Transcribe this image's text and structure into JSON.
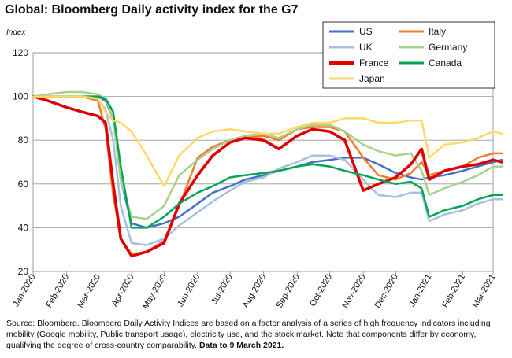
{
  "title": "Global: Bloomberg Daily activity index for the G7",
  "chart_data": {
    "type": "line",
    "ylabel": "Index",
    "ylim": [
      20,
      120
    ],
    "yticks": [
      20,
      40,
      60,
      80,
      100,
      120
    ],
    "grid": true,
    "legend_position": "top-right",
    "x_tick_labels": [
      "Jan-2020",
      "Feb-2020",
      "Mar-2020",
      "Apr-2020",
      "May-2020",
      "Jun-2020",
      "Jul-2020",
      "Aug-2020",
      "Sep-2020",
      "Oct-2020",
      "Nov-2020",
      "Dec-2020",
      "Jan-2021",
      "Feb-2021",
      "Mar-2021"
    ],
    "x": [
      "2020-01-01",
      "2020-01-15",
      "2020-02-01",
      "2020-02-15",
      "2020-03-01",
      "2020-03-08",
      "2020-03-15",
      "2020-03-22",
      "2020-04-01",
      "2020-04-15",
      "2020-05-01",
      "2020-05-15",
      "2020-06-01",
      "2020-06-15",
      "2020-07-01",
      "2020-07-15",
      "2020-08-01",
      "2020-08-15",
      "2020-09-01",
      "2020-09-15",
      "2020-10-01",
      "2020-10-15",
      "2020-11-01",
      "2020-11-15",
      "2020-12-01",
      "2020-12-15",
      "2020-12-25",
      "2021-01-01",
      "2021-01-15",
      "2021-02-01",
      "2021-02-15",
      "2021-03-01",
      "2021-03-09"
    ],
    "series": [
      {
        "name": "US",
        "color": "#4472c4",
        "width": 2.5,
        "values": [
          100,
          100,
          100,
          100,
          100,
          98,
          90,
          62,
          42,
          40,
          42,
          45,
          51,
          56,
          59,
          62,
          64,
          66,
          68,
          70,
          71,
          72,
          72,
          69,
          65,
          63,
          62,
          63,
          64,
          66,
          68,
          70,
          71
        ]
      },
      {
        "name": "Italy",
        "color": "#ed7d31",
        "width": 2.5,
        "values": [
          100,
          100,
          100,
          100,
          98,
          85,
          55,
          35,
          28,
          29,
          34,
          50,
          72,
          77,
          80,
          81,
          82,
          80,
          85,
          86,
          86,
          84,
          72,
          64,
          62,
          65,
          70,
          64,
          66,
          68,
          72,
          74,
          74
        ]
      },
      {
        "name": "UK",
        "color": "#a9bfe0",
        "width": 2.5,
        "values": [
          100,
          100,
          100,
          100,
          99,
          94,
          80,
          50,
          33,
          32,
          35,
          41,
          47,
          52,
          57,
          61,
          63,
          67,
          70,
          73,
          73,
          71,
          62,
          55,
          54,
          56,
          56,
          43,
          46,
          48,
          51,
          53,
          53
        ]
      },
      {
        "name": "Germany",
        "color": "#a9d18e",
        "width": 2.5,
        "values": [
          100,
          101,
          102,
          102,
          101,
          99,
          90,
          62,
          45,
          44,
          50,
          64,
          71,
          76,
          80,
          82,
          83,
          81,
          85,
          87,
          87,
          84,
          78,
          75,
          73,
          74,
          66,
          55,
          58,
          61,
          64,
          68,
          68
        ]
      },
      {
        "name": "France",
        "color": "#e00000",
        "width": 3.5,
        "values": [
          100,
          98,
          95,
          93,
          91,
          88,
          60,
          35,
          27,
          29,
          33,
          51,
          64,
          73,
          79,
          81,
          80,
          76,
          82,
          85,
          84,
          80,
          57,
          60,
          63,
          69,
          76,
          62,
          66,
          68,
          69,
          71,
          70
        ]
      },
      {
        "name": "Canada",
        "color": "#00a651",
        "width": 2.5,
        "values": [
          100,
          100,
          100,
          100,
          100,
          99,
          93,
          68,
          40,
          40,
          45,
          51,
          56,
          59,
          63,
          64,
          65,
          66,
          68,
          69,
          68,
          66,
          64,
          62,
          60,
          61,
          58,
          45,
          48,
          50,
          53,
          55,
          55
        ]
      },
      {
        "name": "Japan",
        "color": "#ffd966",
        "width": 2.5,
        "values": [
          100,
          100,
          100,
          100,
          99,
          93,
          89,
          88,
          84,
          73,
          59,
          73,
          81,
          84,
          85,
          84,
          83,
          83,
          86,
          88,
          88,
          90,
          90,
          88,
          88,
          89,
          89,
          72,
          78,
          79,
          81,
          84,
          83
        ]
      }
    ]
  },
  "source_note_plain": "Source: Bloomberg.   Bloomberg Daily Activity Indices are based on a factor analysis of a series of high frequency indicators including mobility (Google mobility, Public transport usage), electricity use, and the stock market.  Note that components differ by economy, qualifying the degree of cross-country comparability.",
  "source_note_bold": "Data to 9 March 2021."
}
